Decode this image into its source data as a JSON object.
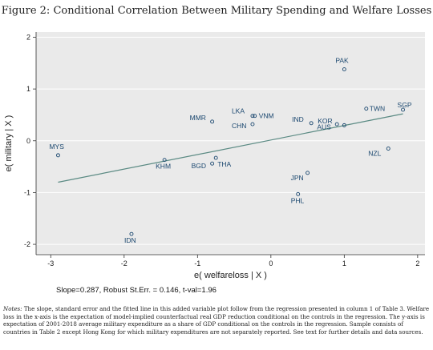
{
  "figure": {
    "title": "Figure 2: Conditional Correlation Between Military Spending and Welfare Losses",
    "stats_line": "Slope=0.287, Robust St.Err. = 0.146, t-val=1.96",
    "notes_label": "Notes:",
    "notes_text": "The slope, standard error and the fitted line in this added variable plot follow from the regression presented in column 1 of Table 3. Welfare loss in the x-axis is the expectation of model-implied counterfactual real GDP reduction conditional on the controls in the regression. The y-axis is expectation of 2001-2018 average military expenditure as a share of GDP conditional on the controls in the regression. Sample consists of countries in Table 2 except Hong Kong for which military expenditures are not separately reported. See text for further details and data sources."
  },
  "colors": {
    "plot_background": "#eaeaea",
    "grid": "#ffffff",
    "marker": "#1a476f",
    "label": "#1a476f",
    "fit_line": "#5a8a83"
  },
  "chart_data": {
    "type": "scatter",
    "xlabel": "e( welfareloss | X )",
    "ylabel": "e( military | X )",
    "xlim": [
      -3.2,
      2.1
    ],
    "ylim": [
      -2.2,
      2.1
    ],
    "xticks": [
      -3,
      -2,
      -1,
      0,
      1,
      2
    ],
    "yticks": [
      -2,
      -1,
      0,
      1,
      2
    ],
    "grid": true,
    "marker": "hollow-circle",
    "points": [
      {
        "label": "PAK",
        "x": 1.0,
        "y": 1.38
      },
      {
        "label": "TWN",
        "x": 1.3,
        "y": 0.62
      },
      {
        "label": "SGP",
        "x": 1.8,
        "y": 0.6
      },
      {
        "label": "LKA",
        "x": -0.25,
        "y": 0.48
      },
      {
        "label": "VNM",
        "x": -0.22,
        "y": 0.48
      },
      {
        "label": "MMR",
        "x": -0.8,
        "y": 0.37
      },
      {
        "label": "CHN",
        "x": -0.25,
        "y": 0.32
      },
      {
        "label": "IND",
        "x": 0.55,
        "y": 0.34
      },
      {
        "label": "KOR",
        "x": 0.9,
        "y": 0.32
      },
      {
        "label": "AUS",
        "x": 1.0,
        "y": 0.3
      },
      {
        "label": "MYS",
        "x": -2.9,
        "y": -0.28
      },
      {
        "label": "NZL",
        "x": 1.6,
        "y": -0.15
      },
      {
        "label": "KHM",
        "x": -1.45,
        "y": -0.37
      },
      {
        "label": "THA",
        "x": -0.75,
        "y": -0.33
      },
      {
        "label": "BGD",
        "x": -0.8,
        "y": -0.44
      },
      {
        "label": "JPN",
        "x": 0.5,
        "y": -0.62
      },
      {
        "label": "PHL",
        "x": 0.37,
        "y": -1.03
      },
      {
        "label": "IDN",
        "x": -1.9,
        "y": -1.8
      }
    ],
    "fit_line": {
      "x": [
        -2.9,
        1.8
      ],
      "y": [
        -0.8,
        0.52
      ]
    }
  }
}
